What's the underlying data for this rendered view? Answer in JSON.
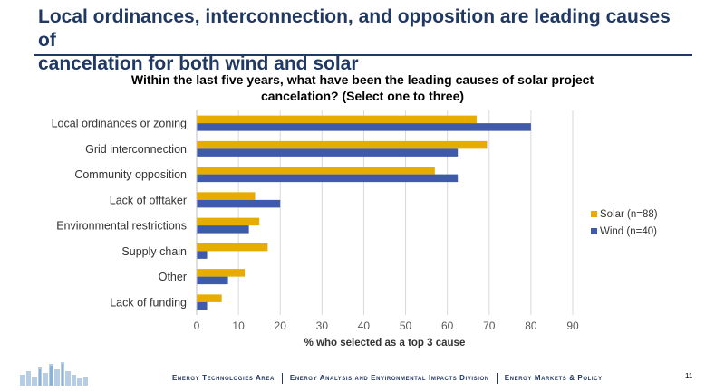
{
  "slide": {
    "title_line1": "Local ordinances, interconnection, and opposition are leading causes of",
    "title_line2": "cancelation for both wind and solar",
    "page_number": "11"
  },
  "footer": {
    "item1": "Energy Technologies Area",
    "item2": "Energy Analysis and Environmental Impacts Division",
    "item3": "Energy Markets & Policy"
  },
  "colors": {
    "solar": "#e6ac00",
    "wind": "#3f5aa8",
    "title": "#1f3864"
  },
  "chart_data": {
    "type": "bar",
    "orientation": "horizontal",
    "title_line1": "Within the last five years, what have been the leading causes of solar project",
    "title_line2": "cancelation? (Select one to three)",
    "xlabel": "% who selected as a top 3 cause",
    "ylabel": "",
    "xlim": [
      0,
      90
    ],
    "xticks": [
      "0",
      "10",
      "20",
      "30",
      "40",
      "50",
      "60",
      "70",
      "80",
      "90"
    ],
    "grid": true,
    "legend_position": "right",
    "categories": [
      "Local ordinances or zoning",
      "Grid interconnection",
      "Community opposition",
      "Lack of offtaker",
      "Environmental restrictions",
      "Supply chain",
      "Other",
      "Lack of funding"
    ],
    "series": [
      {
        "name": "Solar (n=88)",
        "values": [
          67,
          69.5,
          57,
          14,
          15,
          17,
          11.5,
          6
        ]
      },
      {
        "name": "Wind (n=40)",
        "values": [
          80,
          62.5,
          62.5,
          20,
          12.5,
          2.5,
          7.5,
          2.5
        ]
      }
    ]
  }
}
